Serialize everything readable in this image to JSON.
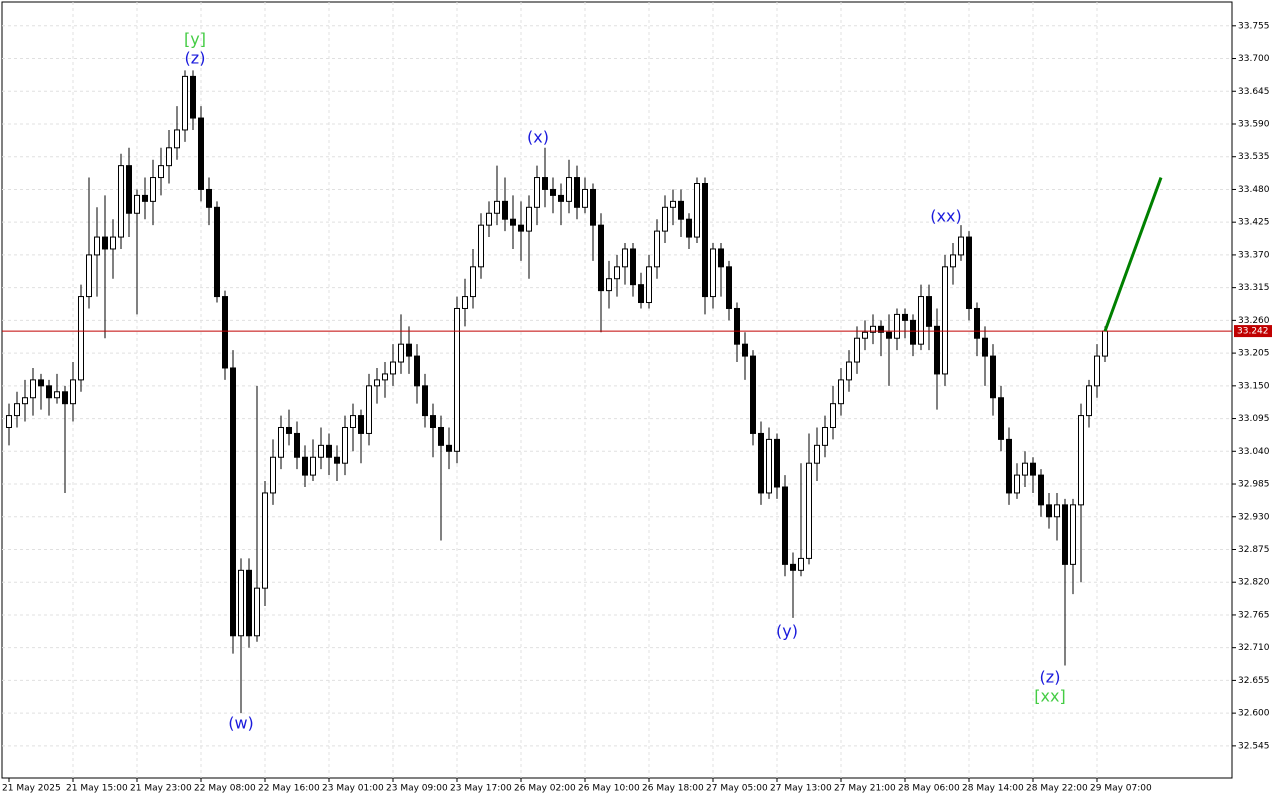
{
  "chart_data": {
    "type": "candlestick",
    "categories": [
      "21 May 2025",
      null,
      null,
      null,
      null,
      null,
      null,
      null,
      "21 May 15:00",
      null,
      null,
      null,
      null,
      null,
      null,
      null,
      "21 May 23:00",
      null,
      null,
      null,
      null,
      null,
      null,
      null,
      "22 May 08:00",
      null,
      null,
      null,
      null,
      null,
      null,
      null,
      "22 May 16:00",
      null,
      null,
      null,
      null,
      null,
      null,
      null,
      "23 May 01:00",
      null,
      null,
      null,
      null,
      null,
      null,
      null,
      "23 May 09:00",
      null,
      null,
      null,
      null,
      null,
      null,
      null,
      "23 May 17:00",
      null,
      null,
      null,
      null,
      null,
      null,
      null,
      "26 May 02:00",
      null,
      null,
      null,
      null,
      null,
      null,
      null,
      "26 May 10:00",
      null,
      null,
      null,
      null,
      null,
      null,
      null,
      "26 May 18:00",
      null,
      null,
      null,
      null,
      null,
      null,
      null,
      "27 May 05:00",
      null,
      null,
      null,
      null,
      null,
      null,
      null,
      "27 May 13:00",
      null,
      null,
      null,
      null,
      null,
      null,
      null,
      "27 May 21:00",
      null,
      null,
      null,
      null,
      null,
      null,
      null,
      "28 May 06:00",
      null,
      null,
      null,
      null,
      null,
      null,
      null,
      "28 May 14:00",
      null,
      null,
      null,
      null,
      null,
      null,
      null,
      "28 May 22:00",
      null,
      null,
      null,
      null,
      null,
      null,
      null,
      "29 May 07:00",
      null
    ],
    "ohlc": [
      [
        33.08,
        33.12,
        33.05,
        33.1
      ],
      [
        33.1,
        33.14,
        33.08,
        33.12
      ],
      [
        33.12,
        33.16,
        33.09,
        33.13
      ],
      [
        33.13,
        33.18,
        33.1,
        33.16
      ],
      [
        33.16,
        33.17,
        33.11,
        33.15
      ],
      [
        33.15,
        33.16,
        33.1,
        33.13
      ],
      [
        33.13,
        33.17,
        33.12,
        33.14
      ],
      [
        33.14,
        33.15,
        32.97,
        33.12
      ],
      [
        33.12,
        33.19,
        33.09,
        33.16
      ],
      [
        33.16,
        33.32,
        33.14,
        33.3
      ],
      [
        33.3,
        33.5,
        33.28,
        33.37
      ],
      [
        33.37,
        33.45,
        33.3,
        33.4
      ],
      [
        33.4,
        33.47,
        33.23,
        33.38
      ],
      [
        33.38,
        33.43,
        33.33,
        33.4
      ],
      [
        33.4,
        33.54,
        33.38,
        33.52
      ],
      [
        33.52,
        33.55,
        33.4,
        33.44
      ],
      [
        33.44,
        33.48,
        33.27,
        33.47
      ],
      [
        33.47,
        33.5,
        33.43,
        33.46
      ],
      [
        33.46,
        33.53,
        33.42,
        33.5
      ],
      [
        33.5,
        33.55,
        33.47,
        33.52
      ],
      [
        33.52,
        33.58,
        33.49,
        33.55
      ],
      [
        33.55,
        33.62,
        33.53,
        33.58
      ],
      [
        33.58,
        33.68,
        33.56,
        33.67
      ],
      [
        33.67,
        33.68,
        33.58,
        33.6
      ],
      [
        33.6,
        33.62,
        33.46,
        33.48
      ],
      [
        33.48,
        33.5,
        33.42,
        33.45
      ],
      [
        33.45,
        33.46,
        33.29,
        33.3
      ],
      [
        33.3,
        33.31,
        33.16,
        33.18
      ],
      [
        33.18,
        33.21,
        32.7,
        32.73
      ],
      [
        32.73,
        32.86,
        32.6,
        32.84
      ],
      [
        32.84,
        32.86,
        32.71,
        32.73
      ],
      [
        32.73,
        33.15,
        32.72,
        32.81
      ],
      [
        32.81,
        32.99,
        32.78,
        32.97
      ],
      [
        32.97,
        33.06,
        32.95,
        33.03
      ],
      [
        33.03,
        33.1,
        33.01,
        33.08
      ],
      [
        33.08,
        33.11,
        33.05,
        33.07
      ],
      [
        33.07,
        33.09,
        33.01,
        33.03
      ],
      [
        33.03,
        33.05,
        32.98,
        33.0
      ],
      [
        33.0,
        33.06,
        32.99,
        33.03
      ],
      [
        33.03,
        33.08,
        33.01,
        33.05
      ],
      [
        33.05,
        33.07,
        33.0,
        33.03
      ],
      [
        33.03,
        33.05,
        32.99,
        33.02
      ],
      [
        33.02,
        33.1,
        33.0,
        33.08
      ],
      [
        33.08,
        33.12,
        33.04,
        33.1
      ],
      [
        33.1,
        33.11,
        33.02,
        33.07
      ],
      [
        33.07,
        33.17,
        33.05,
        33.15
      ],
      [
        33.15,
        33.18,
        33.12,
        33.16
      ],
      [
        33.16,
        33.19,
        33.13,
        33.17
      ],
      [
        33.17,
        33.22,
        33.15,
        33.19
      ],
      [
        33.19,
        33.27,
        33.17,
        33.22
      ],
      [
        33.22,
        33.25,
        33.17,
        33.2
      ],
      [
        33.2,
        33.22,
        33.12,
        33.15
      ],
      [
        33.15,
        33.17,
        33.08,
        33.1
      ],
      [
        33.1,
        33.12,
        33.03,
        33.08
      ],
      [
        33.08,
        33.1,
        32.89,
        33.05
      ],
      [
        33.05,
        33.08,
        33.01,
        33.04
      ],
      [
        33.04,
        33.3,
        33.02,
        33.28
      ],
      [
        33.28,
        33.33,
        33.25,
        33.3
      ],
      [
        33.3,
        33.38,
        33.28,
        33.35
      ],
      [
        33.35,
        33.44,
        33.33,
        33.42
      ],
      [
        33.42,
        33.46,
        33.4,
        33.44
      ],
      [
        33.44,
        33.52,
        33.42,
        33.46
      ],
      [
        33.46,
        33.5,
        33.41,
        33.43
      ],
      [
        33.43,
        33.47,
        33.38,
        33.42
      ],
      [
        33.42,
        33.46,
        33.36,
        33.41
      ],
      [
        33.41,
        33.47,
        33.33,
        33.45
      ],
      [
        33.45,
        33.52,
        33.42,
        33.5
      ],
      [
        33.5,
        33.55,
        33.45,
        33.48
      ],
      [
        33.48,
        33.5,
        33.44,
        33.47
      ],
      [
        33.47,
        33.49,
        33.42,
        33.46
      ],
      [
        33.46,
        33.53,
        33.44,
        33.5
      ],
      [
        33.5,
        33.52,
        33.43,
        33.45
      ],
      [
        33.45,
        33.5,
        33.44,
        33.48
      ],
      [
        33.48,
        33.49,
        33.36,
        33.42
      ],
      [
        33.42,
        33.44,
        33.24,
        33.31
      ],
      [
        33.31,
        33.36,
        33.28,
        33.33
      ],
      [
        33.33,
        33.37,
        33.3,
        33.35
      ],
      [
        33.35,
        33.39,
        33.32,
        33.38
      ],
      [
        33.38,
        33.39,
        33.3,
        33.32
      ],
      [
        33.32,
        33.34,
        33.28,
        33.29
      ],
      [
        33.29,
        33.37,
        33.28,
        33.35
      ],
      [
        33.35,
        33.43,
        33.33,
        33.41
      ],
      [
        33.41,
        33.47,
        33.39,
        33.45
      ],
      [
        33.45,
        33.48,
        33.42,
        33.46
      ],
      [
        33.46,
        33.48,
        33.4,
        33.43
      ],
      [
        33.43,
        33.44,
        33.38,
        33.4
      ],
      [
        33.4,
        33.5,
        33.39,
        33.49
      ],
      [
        33.49,
        33.5,
        33.27,
        33.3
      ],
      [
        33.3,
        33.39,
        33.28,
        33.38
      ],
      [
        33.38,
        33.39,
        33.3,
        33.35
      ],
      [
        33.35,
        33.36,
        33.26,
        33.28
      ],
      [
        33.28,
        33.29,
        33.19,
        33.22
      ],
      [
        33.22,
        33.24,
        33.16,
        33.2
      ],
      [
        33.2,
        33.21,
        33.05,
        33.07
      ],
      [
        33.07,
        33.09,
        32.95,
        32.97
      ],
      [
        32.97,
        33.08,
        32.96,
        33.06
      ],
      [
        33.06,
        33.07,
        32.96,
        32.98
      ],
      [
        32.98,
        33.0,
        32.83,
        32.85
      ],
      [
        32.85,
        32.87,
        32.76,
        32.84
      ],
      [
        32.84,
        33.02,
        32.83,
        32.86
      ],
      [
        32.86,
        33.07,
        32.85,
        33.02
      ],
      [
        33.02,
        33.08,
        32.99,
        33.05
      ],
      [
        33.05,
        33.1,
        33.03,
        33.08
      ],
      [
        33.08,
        33.15,
        33.06,
        33.12
      ],
      [
        33.12,
        33.18,
        33.1,
        33.16
      ],
      [
        33.16,
        33.21,
        33.14,
        33.19
      ],
      [
        33.19,
        33.25,
        33.17,
        33.23
      ],
      [
        33.23,
        33.26,
        33.21,
        33.24
      ],
      [
        33.24,
        33.27,
        33.22,
        33.25
      ],
      [
        33.25,
        33.26,
        33.2,
        33.24
      ],
      [
        33.24,
        33.27,
        33.15,
        33.23
      ],
      [
        33.23,
        33.28,
        33.21,
        33.27
      ],
      [
        33.27,
        33.28,
        33.23,
        33.26
      ],
      [
        33.26,
        33.27,
        33.2,
        33.22
      ],
      [
        33.22,
        33.32,
        33.21,
        33.3
      ],
      [
        33.3,
        33.32,
        33.21,
        33.25
      ],
      [
        33.25,
        33.28,
        33.11,
        33.17
      ],
      [
        33.17,
        33.37,
        33.15,
        33.35
      ],
      [
        33.35,
        33.39,
        33.32,
        33.37
      ],
      [
        33.37,
        33.42,
        33.36,
        33.4
      ],
      [
        33.4,
        33.41,
        33.26,
        33.28
      ],
      [
        33.28,
        33.29,
        33.2,
        33.23
      ],
      [
        33.23,
        33.25,
        33.15,
        33.2
      ],
      [
        33.2,
        33.22,
        33.1,
        33.13
      ],
      [
        33.13,
        33.15,
        33.04,
        33.06
      ],
      [
        33.06,
        33.08,
        32.95,
        32.97
      ],
      [
        32.97,
        33.02,
        32.96,
        33.0
      ],
      [
        33.0,
        33.04,
        32.98,
        33.02
      ],
      [
        33.02,
        33.03,
        32.97,
        33.0
      ],
      [
        33.0,
        33.01,
        32.93,
        32.95
      ],
      [
        32.95,
        32.97,
        32.91,
        32.93
      ],
      [
        32.93,
        32.97,
        32.89,
        32.95
      ],
      [
        32.95,
        32.96,
        32.68,
        32.85
      ],
      [
        32.85,
        32.96,
        32.8,
        32.95
      ],
      [
        32.95,
        33.12,
        32.82,
        33.1
      ],
      [
        33.1,
        33.16,
        33.08,
        33.15
      ],
      [
        33.15,
        33.22,
        33.13,
        33.2
      ],
      [
        33.2,
        33.25,
        33.19,
        33.242
      ]
    ],
    "up_color": "#ffffff",
    "down_color": "#000000",
    "ylim": [
      32.491,
      33.795
    ],
    "yticks": [
      33.755,
      {
        "value": 33.7,
        "label": "33.700"
      },
      33.645,
      {
        "value": 33.59,
        "label": "33.590"
      },
      33.535,
      {
        "value": 33.48,
        "label": "33.480"
      },
      33.425,
      {
        "value": 33.37,
        "label": "33.370"
      },
      33.315,
      {
        "value": 33.26,
        "label": "33.260"
      },
      33.205,
      {
        "value": 33.15,
        "label": "33.150"
      },
      33.095,
      {
        "value": 33.04,
        "label": "33.040"
      },
      32.985,
      {
        "value": 32.93,
        "label": "32.930"
      },
      32.875,
      {
        "value": 32.82,
        "label": "32.820"
      },
      32.765,
      {
        "value": 32.71,
        "label": "32.710"
      },
      32.655,
      {
        "value": 32.6,
        "label": "32.600"
      },
      32.545
    ],
    "grid": true,
    "price": 33.242,
    "price_color": "#c00000",
    "projection": {
      "color": "#008000",
      "values": [
        33.242,
        33.5
      ]
    },
    "annotations": [
      {
        "text": "[y]",
        "color": "#44cc44"
      },
      {
        "text": "(z)",
        "color": "#1a1adc"
      },
      {
        "text": "(x)",
        "color": "#1a1adc"
      },
      {
        "text": "(xx)",
        "color": "#1a1adc"
      },
      {
        "text": "(w)",
        "color": "#1a1adc"
      },
      {
        "text": "(y)",
        "color": "#1a1adc"
      },
      {
        "text": "(z)",
        "color": "#1a1adc"
      },
      {
        "text": "[xx]",
        "color": "#44cc44"
      }
    ]
  }
}
